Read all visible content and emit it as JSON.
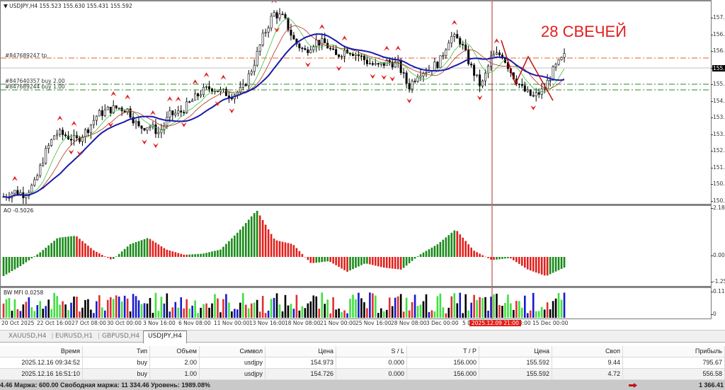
{
  "chart": {
    "symbol_header": "USDJPY,H4",
    "ohlc": "155.523 155.630 155.431 155.592",
    "annotation": "28 СВЕЧЕЙ",
    "current_price_tag": "155.",
    "orders": [
      {
        "label": "#847689247 tp",
        "type": "tp",
        "price": 156.0,
        "color": "#e06030"
      },
      {
        "label": "#847640357 buy 2.00",
        "type": "buy",
        "price": 154.973,
        "color": "#2a8a2a"
      },
      {
        "label": "#847689244 buy 1.00",
        "type": "buy",
        "price": 154.726,
        "color": "#2a8a2a"
      }
    ],
    "price_axis": [
      "157.",
      "156.",
      "156.",
      "155.",
      "155.",
      "154.",
      "153.",
      "153.",
      "152.",
      "151.",
      "150.",
      "150."
    ],
    "cursor_time_label": "2025.12.09 21:00",
    "colors": {
      "bull": "#ffffff",
      "bear": "#000000",
      "ma_slow": "#1a1aaa",
      "ma_mid": "#b03020",
      "ma_fast": "#40c040",
      "fractal": "#e0201c",
      "ao_up": "#1a8a1a",
      "ao_down": "#e0201c",
      "cursor_line": "#b03020"
    }
  },
  "ao": {
    "label": "AO -0.5026",
    "axis": [
      "2.180",
      "0.00",
      "-1.25"
    ]
  },
  "mfi": {
    "label": "BW MFI 0.0258",
    "axis": [
      "0.11",
      "0"
    ],
    "colors": [
      "#40e040",
      "#1a1acc",
      "#e03030",
      "#000000"
    ]
  },
  "time_axis": [
    "20 Oct 2025",
    "22 Oct 16:00",
    "27 Oct 08:00",
    "30 Oct 00:00",
    "3 Nov 16:00",
    "6 Nov 08:00",
    "11 Nov 00:00",
    "13 Nov 16:00",
    "18 Nov 08:00",
    "21 Nov 00:00",
    "25 Nov 16:00",
    "28 Nov 08:00",
    "3 Dec 00:00",
    "5 D",
    "08:00",
    "15 Dec 00:00"
  ],
  "tabs": [
    {
      "label": "XAUUSD,H4",
      "active": false
    },
    {
      "label": "EURUSD,H1",
      "active": false
    },
    {
      "label": "GBPUSD,H4",
      "active": false
    },
    {
      "label": "USDJPY,H4",
      "active": true
    }
  ],
  "terminal": {
    "columns": [
      "Время",
      "Тип",
      "Объем",
      "Символ",
      "Цена",
      "S / L",
      "T / P",
      "Цена",
      "Своп",
      "Прибыль"
    ],
    "rows": [
      [
        "2025.12.16 09:34:52",
        "buy",
        "2.00",
        "usdjpy",
        "154.973",
        "0.000",
        "156.000",
        "155.592",
        "9.44",
        "795.67"
      ],
      [
        "2025.12.16 16:51:10",
        "buy",
        "1.00",
        "usdjpy",
        "154.726",
        "0.000",
        "156.000",
        "155.592",
        "4.72",
        "556.58"
      ]
    ],
    "summary": "4.46  Маржа: 600.00  Свободная маржа: 11 334.46  Уровень: 1989.08%",
    "total_profit": "1 366.41"
  },
  "chart_data": {
    "type": "candlestick",
    "title": "USDJPY,H4",
    "ohlc_last": {
      "open": 155.523,
      "high": 155.63,
      "low": 155.431,
      "close": 155.592
    },
    "ylim": [
      149.9,
      157.6
    ],
    "x_ticks": [
      "20 Oct 2025",
      "22 Oct 16:00",
      "27 Oct 08:00",
      "30 Oct 00:00",
      "3 Nov 16:00",
      "6 Nov 08:00",
      "11 Nov 00:00",
      "13 Nov 16:00",
      "18 Nov 08:00",
      "21 Nov 00:00",
      "25 Nov 16:00",
      "28 Nov 08:00",
      "3 Dec 00:00",
      "5 Dec",
      "2025.12.09 21:00",
      "15 Dec 00:00"
    ],
    "close_path": [
      150.1,
      150.3,
      150.2,
      150.6,
      151.8,
      152.6,
      152.5,
      152.3,
      152.7,
      153.3,
      153.5,
      153.6,
      153.5,
      152.8,
      152.9,
      152.6,
      153.3,
      153.4,
      153.8,
      154.2,
      154.4,
      154.2,
      154.1,
      154.3,
      155.2,
      156.4,
      157.3,
      157.1,
      156.2,
      155.8,
      156.2,
      156.1,
      155.6,
      155.9,
      155.7,
      155.4,
      155.2,
      155.4,
      155.3,
      154.4,
      155.0,
      155.1,
      155.4,
      156.4,
      156.2,
      155.2,
      154.4,
      155.6,
      155.7,
      154.9,
      154.3,
      154.0,
      154.3,
      155.1,
      155.6
    ],
    "series": [
      {
        "name": "MA slow (blue)",
        "values": [
          150.6,
          150.3,
          150.3,
          150.7,
          151.2,
          151.6,
          152.0,
          152.3,
          152.8,
          153.2,
          153.3,
          153.4,
          153.5,
          153.6,
          153.6,
          153.8,
          154.2,
          154.6,
          155.1,
          155.5,
          155.7,
          155.9,
          155.9,
          155.9,
          155.7,
          155.6,
          155.4,
          155.3,
          155.3,
          155.6,
          155.8,
          155.9,
          155.6,
          155.3,
          155.0
        ]
      },
      {
        "name": "AO",
        "values": [
          -0.9,
          -0.4,
          0.2,
          0.9,
          1.0,
          0.3,
          -0.15,
          0.6,
          0.9,
          0.35,
          0.1,
          0.15,
          0.35,
          1.2,
          2.2,
          0.8,
          0.6,
          -0.3,
          -0.2,
          -0.7,
          -0.3,
          -0.5,
          -0.6,
          0.1,
          0.6,
          1.3,
          0.3,
          -0.15,
          -0.05,
          -0.6,
          -0.9,
          -0.5
        ]
      }
    ],
    "legend": [
      "AO -0.5026",
      "BW MFI 0.0258"
    ],
    "grid": false
  }
}
